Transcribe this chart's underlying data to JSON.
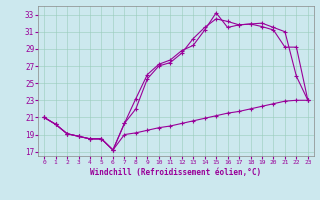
{
  "xlabel": "Windchill (Refroidissement éolien,°C)",
  "bg_color": "#cce8ee",
  "line_color": "#990099",
  "xlim": [
    -0.5,
    23.5
  ],
  "ylim": [
    16.5,
    34
  ],
  "xticks": [
    0,
    1,
    2,
    3,
    4,
    5,
    6,
    7,
    8,
    9,
    10,
    11,
    12,
    13,
    14,
    15,
    16,
    17,
    18,
    19,
    20,
    21,
    22,
    23
  ],
  "yticks": [
    17,
    19,
    21,
    23,
    25,
    27,
    29,
    31,
    33
  ],
  "line1_x": [
    0,
    1,
    2,
    3,
    4,
    5,
    6,
    7,
    8,
    9,
    10,
    11,
    12,
    13,
    14,
    15,
    16,
    17,
    18,
    19,
    20,
    21,
    22,
    23
  ],
  "line1_y": [
    21.0,
    20.2,
    19.1,
    18.8,
    18.5,
    18.5,
    17.2,
    20.3,
    23.2,
    26.0,
    27.2,
    27.7,
    28.8,
    29.4,
    31.2,
    33.2,
    31.5,
    31.8,
    31.9,
    31.6,
    31.2,
    29.2,
    29.2,
    23.0
  ],
  "line2_x": [
    0,
    1,
    2,
    3,
    4,
    5,
    6,
    7,
    8,
    9,
    10,
    11,
    12,
    13,
    14,
    15,
    16,
    17,
    18,
    19,
    20,
    21,
    22,
    23
  ],
  "line2_y": [
    21.0,
    20.2,
    19.1,
    18.8,
    18.5,
    18.5,
    17.2,
    20.3,
    22.0,
    25.5,
    27.0,
    27.4,
    28.5,
    30.2,
    31.5,
    32.5,
    32.2,
    31.8,
    31.9,
    32.0,
    31.5,
    31.0,
    25.8,
    23.0
  ],
  "line3_x": [
    0,
    1,
    2,
    3,
    4,
    5,
    6,
    7,
    8,
    9,
    10,
    11,
    12,
    13,
    14,
    15,
    16,
    17,
    18,
    19,
    20,
    21,
    22,
    23
  ],
  "line3_y": [
    21.0,
    20.2,
    19.1,
    18.8,
    18.5,
    18.5,
    17.2,
    19.0,
    19.2,
    19.5,
    19.8,
    20.0,
    20.3,
    20.6,
    20.9,
    21.2,
    21.5,
    21.7,
    22.0,
    22.3,
    22.6,
    22.9,
    23.0,
    23.0
  ],
  "marker": "+",
  "marker_size": 3,
  "line_width": 0.8
}
